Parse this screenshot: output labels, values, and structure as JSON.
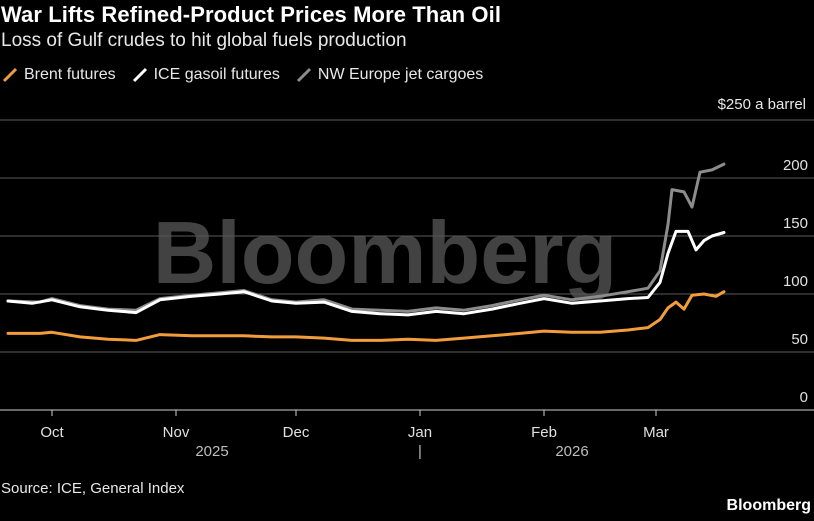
{
  "header": {
    "title": "War Lifts Refined-Product Prices More Than Oil",
    "subtitle": "Loss of Gulf crudes to hit global fuels production"
  },
  "chart_data": {
    "type": "line",
    "title": "War Lifts Refined-Product Prices More Than Oil",
    "subtitle": "Loss of Gulf crudes to hit global fuels production",
    "unit_label": "$250 a barrel",
    "ylim": [
      0,
      250
    ],
    "y_ticks": [
      0,
      50,
      100,
      150,
      200
    ],
    "x_range": [
      "2025-09-20",
      "2026-03-29"
    ],
    "x_ticks": [
      {
        "date": "2025-10-01",
        "label": "Oct"
      },
      {
        "date": "2025-11-01",
        "label": "Nov"
      },
      {
        "date": "2025-12-01",
        "label": "Dec"
      },
      {
        "date": "2026-01-01",
        "label": "Jan"
      },
      {
        "date": "2026-02-01",
        "label": "Feb"
      },
      {
        "date": "2026-03-01",
        "label": "Mar"
      }
    ],
    "year_labels": [
      {
        "date": "2025-11-10",
        "label": "2025"
      },
      {
        "date": "2026-02-08",
        "label": "2026"
      }
    ],
    "year_divider": "|",
    "series": [
      {
        "name": "NW Europe jet cargoes",
        "color": "#8c8c8c",
        "points": [
          [
            "2025-09-20",
            94
          ],
          [
            "2025-09-28",
            93
          ],
          [
            "2025-10-01",
            96
          ],
          [
            "2025-10-08",
            90
          ],
          [
            "2025-10-15",
            87
          ],
          [
            "2025-10-22",
            86
          ],
          [
            "2025-10-28",
            96
          ],
          [
            "2025-11-05",
            99
          ],
          [
            "2025-11-12",
            101
          ],
          [
            "2025-11-18",
            103
          ],
          [
            "2025-11-25",
            95
          ],
          [
            "2025-12-01",
            93
          ],
          [
            "2025-12-08",
            95
          ],
          [
            "2025-12-15",
            87
          ],
          [
            "2025-12-22",
            86
          ],
          [
            "2025-12-29",
            85
          ],
          [
            "2026-01-05",
            88
          ],
          [
            "2026-01-12",
            86
          ],
          [
            "2026-01-19",
            90
          ],
          [
            "2026-01-26",
            95
          ],
          [
            "2026-02-01",
            99
          ],
          [
            "2026-02-08",
            95
          ],
          [
            "2026-02-15",
            98
          ],
          [
            "2026-02-22",
            102
          ],
          [
            "2026-02-27",
            105
          ],
          [
            "2026-03-02",
            120
          ],
          [
            "2026-03-04",
            160
          ],
          [
            "2026-03-05",
            190
          ],
          [
            "2026-03-08",
            188
          ],
          [
            "2026-03-10",
            175
          ],
          [
            "2026-03-12",
            205
          ],
          [
            "2026-03-15",
            207
          ],
          [
            "2026-03-18",
            212
          ]
        ]
      },
      {
        "name": "ICE gasoil futures",
        "color": "#ffffff",
        "points": [
          [
            "2025-09-20",
            94
          ],
          [
            "2025-09-26",
            92
          ],
          [
            "2025-10-01",
            95
          ],
          [
            "2025-10-08",
            89
          ],
          [
            "2025-10-15",
            86
          ],
          [
            "2025-10-22",
            84
          ],
          [
            "2025-10-28",
            95
          ],
          [
            "2025-11-05",
            98
          ],
          [
            "2025-11-12",
            100
          ],
          [
            "2025-11-18",
            102
          ],
          [
            "2025-11-25",
            94
          ],
          [
            "2025-12-01",
            92
          ],
          [
            "2025-12-08",
            93
          ],
          [
            "2025-12-15",
            85
          ],
          [
            "2025-12-22",
            83
          ],
          [
            "2025-12-29",
            82
          ],
          [
            "2026-01-05",
            85
          ],
          [
            "2026-01-12",
            83
          ],
          [
            "2026-01-19",
            87
          ],
          [
            "2026-01-26",
            92
          ],
          [
            "2026-02-01",
            96
          ],
          [
            "2026-02-08",
            92
          ],
          [
            "2026-02-15",
            94
          ],
          [
            "2026-02-22",
            96
          ],
          [
            "2026-02-27",
            97
          ],
          [
            "2026-03-02",
            110
          ],
          [
            "2026-03-04",
            135
          ],
          [
            "2026-03-06",
            154
          ],
          [
            "2026-03-09",
            154
          ],
          [
            "2026-03-11",
            138
          ],
          [
            "2026-03-13",
            146
          ],
          [
            "2026-03-15",
            150
          ],
          [
            "2026-03-18",
            153
          ]
        ]
      },
      {
        "name": "Brent futures",
        "color": "#f39c3c",
        "points": [
          [
            "2025-09-20",
            66
          ],
          [
            "2025-09-28",
            66
          ],
          [
            "2025-10-01",
            67
          ],
          [
            "2025-10-08",
            63
          ],
          [
            "2025-10-15",
            61
          ],
          [
            "2025-10-22",
            60
          ],
          [
            "2025-10-28",
            65
          ],
          [
            "2025-11-05",
            64
          ],
          [
            "2025-11-12",
            64
          ],
          [
            "2025-11-18",
            64
          ],
          [
            "2025-11-25",
            63
          ],
          [
            "2025-12-01",
            63
          ],
          [
            "2025-12-08",
            62
          ],
          [
            "2025-12-15",
            60
          ],
          [
            "2025-12-22",
            60
          ],
          [
            "2025-12-29",
            61
          ],
          [
            "2026-01-05",
            60
          ],
          [
            "2026-01-12",
            62
          ],
          [
            "2026-01-19",
            64
          ],
          [
            "2026-01-26",
            66
          ],
          [
            "2026-02-01",
            68
          ],
          [
            "2026-02-08",
            67
          ],
          [
            "2026-02-15",
            67
          ],
          [
            "2026-02-22",
            69
          ],
          [
            "2026-02-27",
            71
          ],
          [
            "2026-03-02",
            78
          ],
          [
            "2026-03-04",
            88
          ],
          [
            "2026-03-06",
            93
          ],
          [
            "2026-03-08",
            87
          ],
          [
            "2026-03-10",
            99
          ],
          [
            "2026-03-13",
            100
          ],
          [
            "2026-03-16",
            98
          ],
          [
            "2026-03-18",
            102
          ]
        ]
      }
    ]
  },
  "legend": {
    "items": [
      {
        "label": "Brent futures",
        "color": "#f39c3c"
      },
      {
        "label": "ICE gasoil futures",
        "color": "#ffffff"
      },
      {
        "label": "NW Europe jet cargoes",
        "color": "#8c8c8c"
      }
    ]
  },
  "watermark": "Bloomberg",
  "footer": {
    "source": "Source: ICE, General Index",
    "brand": "Bloomberg"
  }
}
